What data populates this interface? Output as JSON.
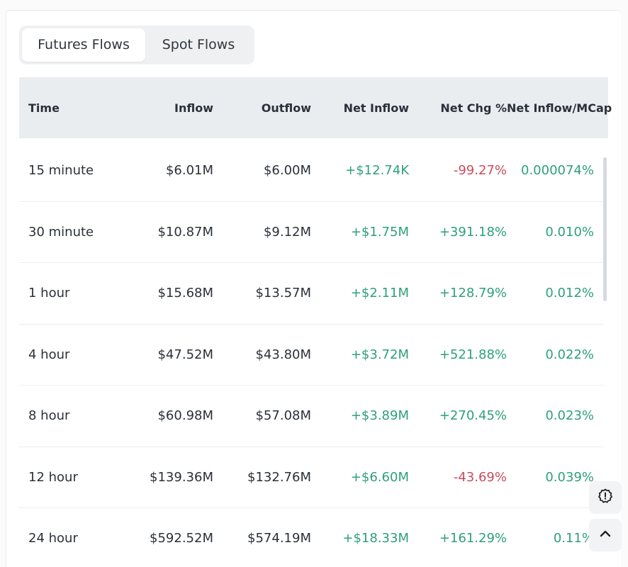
{
  "tabs": {
    "futures": "Futures Flows",
    "spot": "Spot Flows"
  },
  "table": {
    "headers": {
      "time": "Time",
      "inflow": "Inflow",
      "outflow": "Outflow",
      "net_inflow": "Net Inflow",
      "net_chg": "Net Chg %",
      "net_mcap": "Net Inflow/MCap"
    },
    "rows": [
      {
        "time": "15 minute",
        "inflow": "$6.01M",
        "outflow": "$6.00M",
        "net_inflow": "+$12.74K",
        "net_chg": "-99.27%",
        "net_mcap": "0.000074%"
      },
      {
        "time": "30 minute",
        "inflow": "$10.87M",
        "outflow": "$9.12M",
        "net_inflow": "+$1.75M",
        "net_chg": "+391.18%",
        "net_mcap": "0.010%"
      },
      {
        "time": "1 hour",
        "inflow": "$15.68M",
        "outflow": "$13.57M",
        "net_inflow": "+$2.11M",
        "net_chg": "+128.79%",
        "net_mcap": "0.012%"
      },
      {
        "time": "4 hour",
        "inflow": "$47.52M",
        "outflow": "$43.80M",
        "net_inflow": "+$3.72M",
        "net_chg": "+521.88%",
        "net_mcap": "0.022%"
      },
      {
        "time": "8 hour",
        "inflow": "$60.98M",
        "outflow": "$57.08M",
        "net_inflow": "+$3.89M",
        "net_chg": "+270.45%",
        "net_mcap": "0.023%"
      },
      {
        "time": "12 hour",
        "inflow": "$139.36M",
        "outflow": "$132.76M",
        "net_inflow": "+$6.60M",
        "net_chg": "-43.69%",
        "net_mcap": "0.039%"
      },
      {
        "time": "24 hour",
        "inflow": "$592.52M",
        "outflow": "$574.19M",
        "net_inflow": "+$18.33M",
        "net_chg": "+161.29%",
        "net_mcap": "0.11%"
      }
    ]
  },
  "floating": {
    "alert_icon": "alert-badge-icon",
    "up_icon": "chevron-up-icon"
  },
  "colors": {
    "positive": "#2ea07b",
    "negative": "#c74d5e"
  }
}
